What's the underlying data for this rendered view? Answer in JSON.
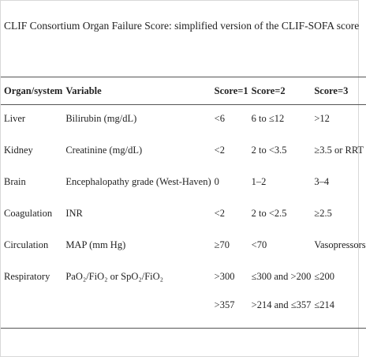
{
  "title": "CLIF Consortium Organ Failure Score: simplified version of the CLIF-SOFA score",
  "table": {
    "header": [
      "Organ/system",
      "Variable",
      "Score=1",
      "Score=2",
      "Score=3"
    ],
    "rows": [
      {
        "organ": "Liver",
        "variable": "Bilirubin (mg/dL)",
        "scores": [
          "<6",
          "6 to ≤12",
          ">12"
        ]
      },
      {
        "organ": "Kidney",
        "variable": "Creatinine (mg/dL)",
        "scores": [
          "<2",
          "2 to <3.5",
          "≥3.5 or RRT"
        ]
      },
      {
        "organ": "Brain",
        "variable": "Encephalopathy grade (West-Haven)",
        "scores": [
          "0",
          "1–2",
          "3–4"
        ]
      },
      {
        "organ": "Coagulation",
        "variable": "INR",
        "scores": [
          "<2",
          "2 to <2.5",
          "≥2.5"
        ]
      },
      {
        "organ": "Circulation",
        "variable": "MAP (mm Hg)",
        "scores": [
          "≥70",
          "<70",
          "Vasopressors"
        ]
      },
      {
        "organ": "Respiratory",
        "variable": "PaO₂/FiO₂ or SpO₂/FiO₂",
        "scores": [
          [
            ">300",
            ">357"
          ],
          [
            "≤300 and >200",
            ">214 and ≤357"
          ],
          [
            "≤200",
            "≤214"
          ]
        ]
      }
    ]
  }
}
